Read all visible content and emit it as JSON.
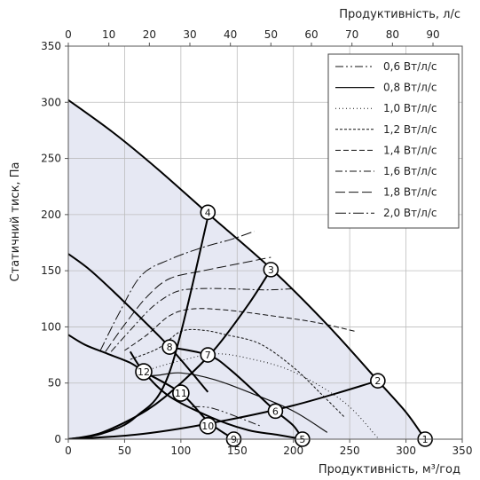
{
  "chart_data": {
    "type": "line",
    "xlabel": "Продуктивність, м³/год",
    "x2label": "Продуктивність, л/с",
    "ylabel": "Статичний тиск, Па",
    "xlim": [
      0,
      350
    ],
    "ylim": [
      0,
      350
    ],
    "x2lim": [
      0,
      97.2222
    ],
    "x_ticks": [
      0,
      50,
      100,
      150,
      200,
      250,
      300,
      350
    ],
    "y_ticks": [
      0,
      50,
      100,
      150,
      200,
      250,
      300,
      350
    ],
    "x2_ticks": [
      0,
      10,
      20,
      30,
      40,
      50,
      60,
      70,
      80,
      90
    ],
    "grid": true,
    "legend_position": "top-right",
    "region_fill": "#e6e8f3",
    "series": [
      {
        "name": "0,6 Вт/л/с",
        "dash": "9 3 2 3 2 3",
        "x": [
          110,
          130,
          170
        ],
        "y": [
          29,
          27,
          12
        ]
      },
      {
        "name": "0,8 Вт/л/с",
        "dash": "",
        "x": [
          65,
          80,
          100,
          130,
          165,
          200,
          230
        ],
        "y": [
          56,
          57,
          59,
          53,
          40,
          25,
          6
        ]
      },
      {
        "name": "1,0 Вт/л/с",
        "dash": "1 3",
        "x": [
          75,
          100,
          130,
          160,
          200,
          245,
          275
        ],
        "y": [
          63,
          70,
          76,
          72,
          60,
          33,
          1
        ]
      },
      {
        "name": "1,2 Вт/л/с",
        "dash": "3 2",
        "x": [
          55,
          80,
          100,
          120,
          140,
          170,
          200,
          225,
          245
        ],
        "y": [
          71,
          81,
          96,
          97,
          93,
          85,
          64,
          40,
          20
        ]
      },
      {
        "name": "1,4 Вт/л/с",
        "dash": "6 3",
        "x": [
          50,
          70,
          90,
          110,
          140,
          180,
          220,
          255
        ],
        "y": [
          79,
          93,
          110,
          116,
          115,
          110,
          104,
          96
        ]
      },
      {
        "name": "1,6 Вт/л/с",
        "dash": "8 3 2 3",
        "x": [
          38,
          55,
          75,
          95,
          115,
          140,
          175,
          200
        ],
        "y": [
          78,
          97,
          118,
          131,
          134,
          134,
          133,
          134
        ]
      },
      {
        "name": "1,8 Вт/л/с",
        "dash": "11 4",
        "x": [
          33,
          50,
          70,
          90,
          120,
          150,
          180
        ],
        "y": [
          78,
          102,
          127,
          143,
          150,
          156,
          162
        ]
      },
      {
        "name": "2,0 Вт/л/с",
        "dash": "12 3 2 3",
        "x": [
          28,
          45,
          65,
          90,
          120,
          145,
          165
        ],
        "y": [
          78,
          112,
          146,
          160,
          171,
          178,
          185
        ]
      }
    ],
    "boundary_curves": [
      {
        "x": [
          0,
          40,
          80,
          124,
          180,
          230,
          275,
          300,
          317
        ],
        "y": [
          302,
          273,
          240,
          201,
          152,
          102,
          52,
          24,
          0
        ]
      },
      {
        "x": [
          0,
          20,
          50,
          90,
          124
        ],
        "y": [
          165,
          150,
          122,
          82,
          42
        ]
      },
      {
        "x": [
          0,
          15,
          35,
          55,
          67
        ],
        "y": [
          93,
          84,
          76,
          68,
          60
        ]
      },
      {
        "x": [
          0,
          30,
          70,
          100,
          130,
          160,
          180
        ],
        "y": [
          0,
          6,
          26,
          50,
          80,
          120,
          151
        ]
      },
      {
        "x": [
          0,
          30,
          60,
          90,
          125
        ],
        "y": [
          0,
          5,
          20,
          60,
          202
        ]
      },
      {
        "x": [
          0,
          60,
          120,
          200,
          275
        ],
        "y": [
          0,
          4,
          13,
          30,
          52
        ]
      },
      {
        "x": [
          55,
          67,
          90,
          128,
          160,
          185,
          208
        ],
        "y": [
          78,
          60,
          38,
          19,
          8,
          4,
          0
        ]
      },
      {
        "x": [
          67,
          100,
          125,
          147
        ],
        "y": [
          60,
          41,
          15,
          0
        ]
      },
      {
        "x": [
          90,
          124,
          145,
          184
        ],
        "y": [
          82,
          75,
          61,
          25
        ]
      },
      {
        "x": [
          184,
          200,
          208
        ],
        "y": [
          25,
          12,
          0
        ]
      }
    ],
    "points": [
      {
        "label": "1",
        "x": 317,
        "y": 0
      },
      {
        "label": "2",
        "x": 275,
        "y": 52
      },
      {
        "label": "3",
        "x": 180,
        "y": 151
      },
      {
        "label": "4",
        "x": 124,
        "y": 202
      },
      {
        "label": "5",
        "x": 208,
        "y": 0
      },
      {
        "label": "6",
        "x": 184,
        "y": 25
      },
      {
        "label": "7",
        "x": 124,
        "y": 75
      },
      {
        "label": "8",
        "x": 90,
        "y": 82
      },
      {
        "label": "9",
        "x": 147,
        "y": 0
      },
      {
        "label": "10",
        "x": 124,
        "y": 12
      },
      {
        "label": "11",
        "x": 100,
        "y": 41
      },
      {
        "label": "12",
        "x": 67,
        "y": 60
      }
    ]
  }
}
